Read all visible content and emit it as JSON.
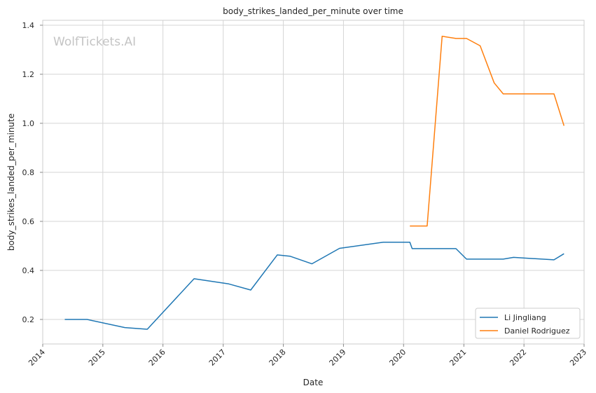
{
  "chart_data": {
    "type": "line",
    "title": "body_strikes_landed_per_minute over time",
    "xlabel": "Date",
    "ylabel": "body_strikes_landed_per_minute",
    "watermark": "WolfTickets.AI",
    "xlim": [
      "2014-01-01",
      "2023-01-01"
    ],
    "ylim": [
      0.1,
      1.42
    ],
    "x_ticks": [
      "2014",
      "2015",
      "2016",
      "2017",
      "2018",
      "2019",
      "2020",
      "2021",
      "2022",
      "2023"
    ],
    "y_ticks": [
      "0.2",
      "0.4",
      "0.6",
      "0.8",
      "1.0",
      "1.2",
      "1.4"
    ],
    "grid": true,
    "legend_position": "bottom-right",
    "series": [
      {
        "name": "Li Jingliang",
        "color": "#1f77b4",
        "points": [
          [
            "2014-05-15",
            0.2
          ],
          [
            "2014-09-27",
            0.2
          ],
          [
            "2015-05-15",
            0.167
          ],
          [
            "2015-09-28",
            0.16
          ],
          [
            "2016-07-08",
            0.366
          ],
          [
            "2017-02-04",
            0.345
          ],
          [
            "2017-06-17",
            0.32
          ],
          [
            "2017-11-25",
            0.463
          ],
          [
            "2018-02-10",
            0.458
          ],
          [
            "2018-06-23",
            0.427
          ],
          [
            "2018-12-08",
            0.49
          ],
          [
            "2019-08-31",
            0.515
          ],
          [
            "2020-02-08",
            0.515
          ],
          [
            "2020-02-22",
            0.489
          ],
          [
            "2020-11-14",
            0.489
          ],
          [
            "2021-01-17",
            0.446
          ],
          [
            "2021-08-28",
            0.446
          ],
          [
            "2021-10-30",
            0.453
          ],
          [
            "2022-07-02",
            0.443
          ],
          [
            "2022-09-01",
            0.468
          ]
        ]
      },
      {
        "name": "Daniel Rodriguez",
        "color": "#ff7f0e",
        "points": [
          [
            "2020-02-08",
            0.581
          ],
          [
            "2020-05-23",
            0.581
          ],
          [
            "2020-08-22",
            1.355
          ],
          [
            "2020-11-14",
            1.346
          ],
          [
            "2021-01-17",
            1.346
          ],
          [
            "2021-04-10",
            1.316
          ],
          [
            "2021-07-04",
            1.165
          ],
          [
            "2021-08-28",
            1.12
          ],
          [
            "2022-07-02",
            1.12
          ],
          [
            "2022-09-01",
            0.99
          ]
        ]
      }
    ]
  }
}
